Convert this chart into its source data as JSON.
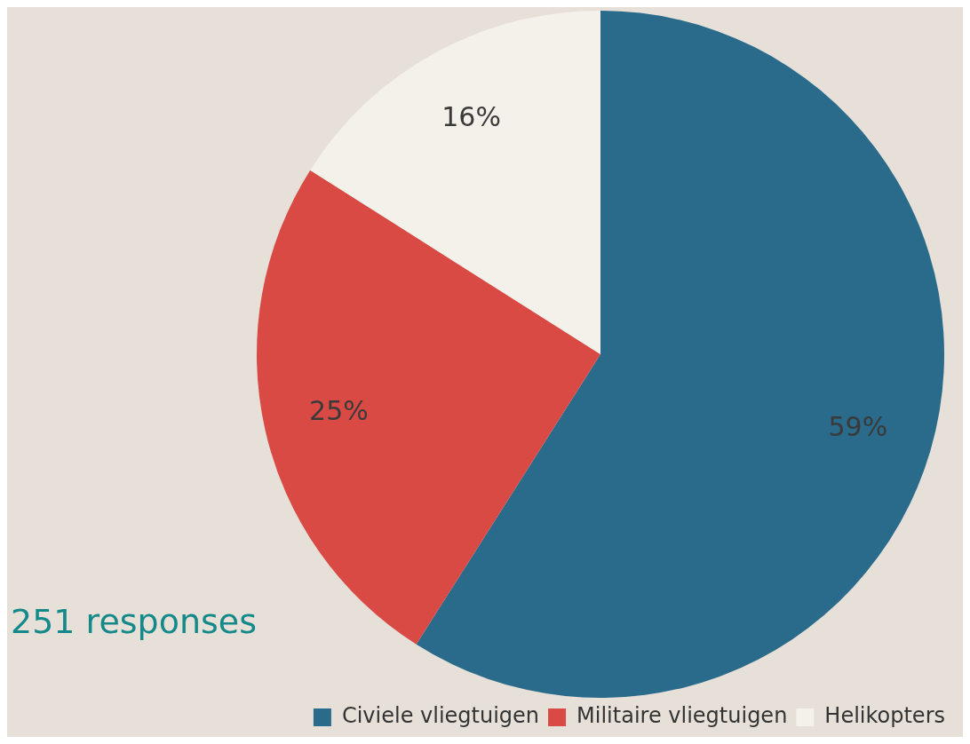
{
  "chart_data": {
    "type": "pie",
    "categories": [
      "Civiele vliegtuigen",
      "Militaire vliegtuigen",
      "Helikopters"
    ],
    "values": [
      59,
      25,
      16
    ],
    "colors": [
      "#2a6a8a",
      "#d94a45",
      "#f4f0ea"
    ],
    "value_labels": [
      "59%",
      "25%",
      "16%"
    ],
    "legend": "bottom right",
    "annotations": [
      "251 responses"
    ]
  }
}
